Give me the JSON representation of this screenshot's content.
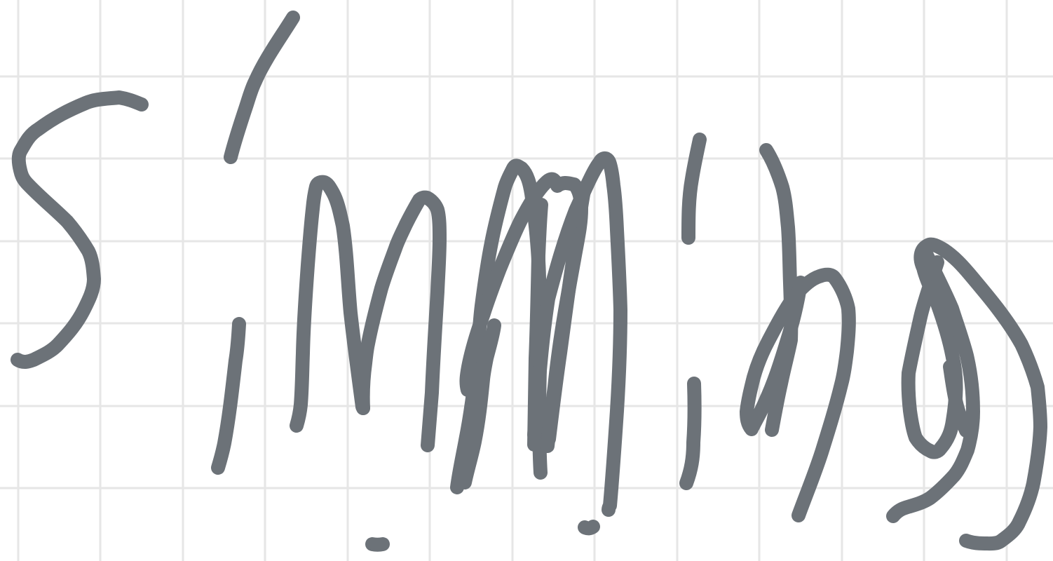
{
  "canvas": {
    "background_color": "#ffffff",
    "grid_color": "#e6e6e6",
    "ink_color": "#6c7278"
  },
  "content": {
    "description_kind": "handwritten-ink-strokes",
    "recognized_text": ""
  }
}
